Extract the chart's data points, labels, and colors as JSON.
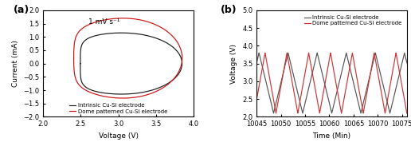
{
  "panel_a": {
    "label": "(a)",
    "xlabel": "Voltage (V)",
    "ylabel": "Current (mA)",
    "xlim": [
      2.0,
      4.0
    ],
    "ylim": [
      -2.0,
      2.0
    ],
    "xticks": [
      2.0,
      2.5,
      3.0,
      3.5,
      4.0
    ],
    "yticks": [
      -2.0,
      -1.5,
      -1.0,
      -0.5,
      0.0,
      0.5,
      1.0,
      1.5,
      2.0
    ],
    "annotation": "1 mV s⁻¹",
    "legend": [
      "Intrinsic Cu-Si electrode",
      "Dome patterned Cu-Si electrode"
    ],
    "colors": [
      "#1a1a1a",
      "#cc1111"
    ],
    "black_ellipse": {
      "v_c": 3.075,
      "i_c": 0.0,
      "a_v": 0.775,
      "a_i": 1.15,
      "squish_v": 2.55,
      "squish_strength": 5.0
    },
    "red_ellipse": {
      "v_c": 3.075,
      "i_c": 0.2,
      "a_v": 0.775,
      "a_i": 1.5,
      "squish_v": 2.45,
      "squish_strength": 6.0
    }
  },
  "panel_b": {
    "label": "(b)",
    "xlabel": "Time (Min)",
    "ylabel": "Voltage (V)",
    "xlim": [
      10045,
      10076
    ],
    "ylim": [
      2.0,
      5.0
    ],
    "xticks": [
      10045,
      10050,
      10055,
      10060,
      10065,
      10070,
      10075
    ],
    "yticks": [
      2.0,
      2.5,
      3.0,
      3.5,
      4.0,
      4.5,
      5.0
    ],
    "legend": [
      "Intrinsic Cu-Si electrode",
      "Dome patterned Cu-Si electrode"
    ],
    "colors": [
      "#555555",
      "#cc3333"
    ],
    "black_period": 6.0,
    "red_period": 4.5,
    "v_min": 2.1,
    "v_max_black": 3.8,
    "v_max_red": 3.8,
    "black_phase": 2.5,
    "red_phase": 0.5
  }
}
